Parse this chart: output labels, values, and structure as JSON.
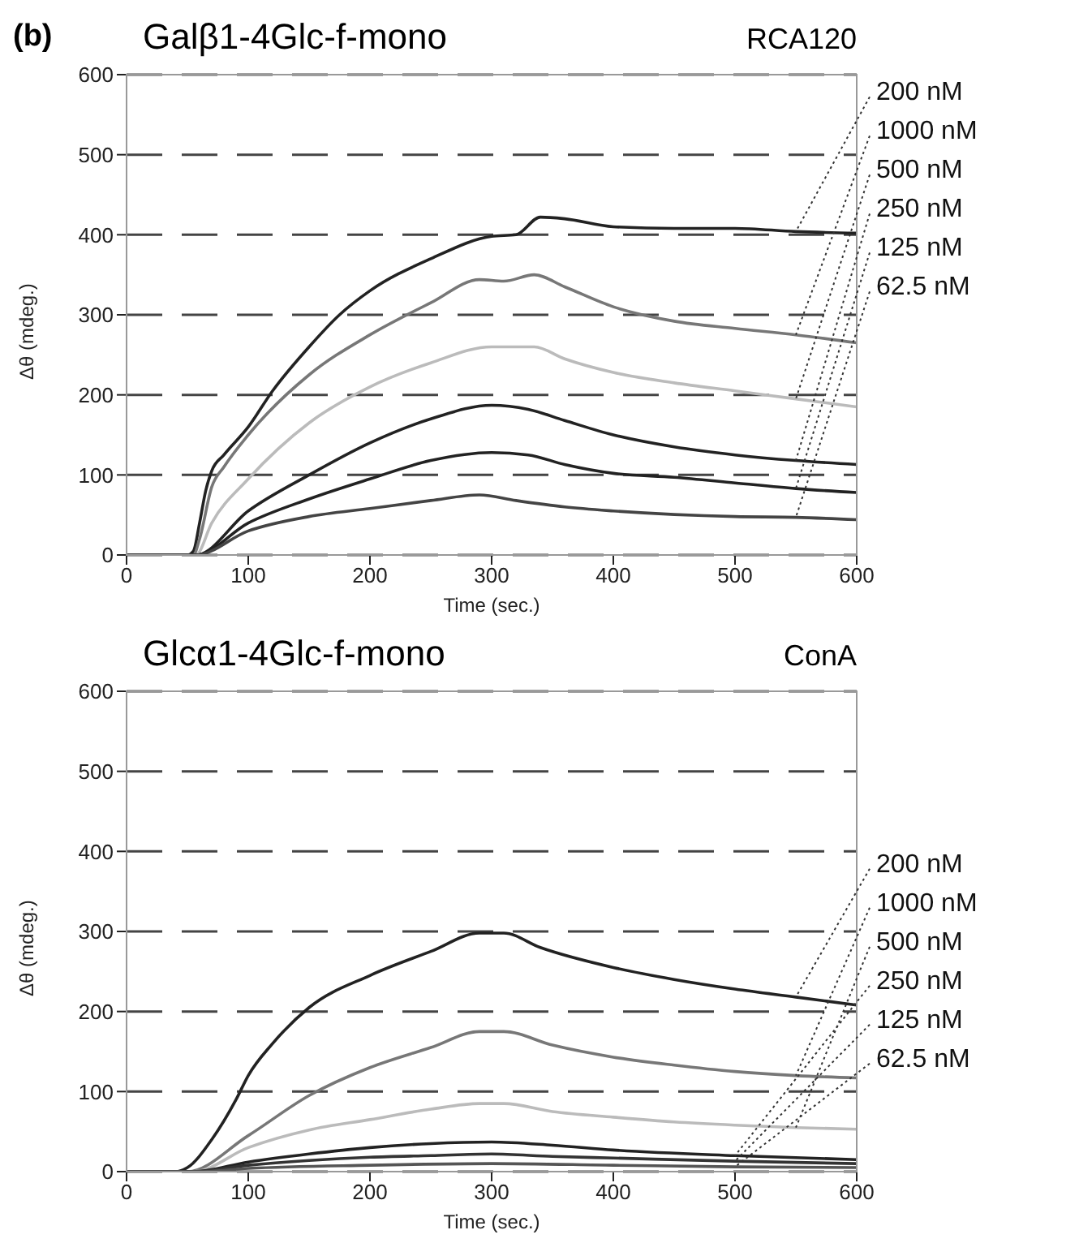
{
  "chart_data": [
    {
      "type": "line",
      "title": "Galβ1-4Glc-f-mono",
      "subtitle": "RCA120",
      "xlabel": "Time (sec.)",
      "ylabel": "Δθ (mdeg.)",
      "annotations": [
        "(b)"
      ],
      "xlim": [
        0,
        600
      ],
      "xticks": [
        0,
        100,
        200,
        300,
        400,
        500,
        600
      ],
      "ylim": [
        0,
        600
      ],
      "yticks": [
        0,
        100,
        200,
        300,
        400,
        500,
        600
      ],
      "grid": "y",
      "legend": false,
      "marker": "none",
      "line_style": "solid",
      "series": [
        {
          "name": "200 nM",
          "color": "#222222",
          "x": [
            0,
            50,
            55,
            60,
            65,
            70,
            80,
            100,
            120,
            150,
            175,
            200,
            250,
            300,
            320,
            340,
            360,
            400,
            450,
            500,
            550,
            600
          ],
          "values": [
            0,
            0,
            5,
            40,
            80,
            105,
            125,
            160,
            205,
            260,
            300,
            330,
            370,
            398,
            400,
            422,
            420,
            410,
            408,
            408,
            404,
            402
          ]
        },
        {
          "name": "1000 nM",
          "color": "#777777",
          "x": [
            0,
            55,
            60,
            70,
            80,
            100,
            150,
            200,
            250,
            290,
            310,
            335,
            360,
            400,
            450,
            500,
            550,
            600
          ],
          "values": [
            0,
            0,
            20,
            85,
            110,
            150,
            225,
            275,
            315,
            344,
            342,
            350,
            335,
            310,
            292,
            283,
            275,
            265
          ]
        },
        {
          "name": "500 nM",
          "color": "#bbbbbb",
          "x": [
            0,
            57,
            70,
            100,
            150,
            200,
            250,
            300,
            335,
            360,
            400,
            450,
            500,
            550,
            600
          ],
          "values": [
            0,
            0,
            40,
            95,
            165,
            210,
            240,
            260,
            260,
            245,
            228,
            215,
            205,
            195,
            185
          ]
        },
        {
          "name": "250 nM",
          "color": "#222222",
          "x": [
            0,
            57,
            100,
            150,
            200,
            250,
            300,
            330,
            360,
            400,
            450,
            500,
            550,
            600
          ],
          "values": [
            0,
            0,
            55,
            100,
            140,
            170,
            187,
            182,
            168,
            150,
            135,
            125,
            118,
            113
          ]
        },
        {
          "name": "125 nM",
          "color": "#222222",
          "x": [
            0,
            57,
            100,
            150,
            200,
            250,
            300,
            330,
            360,
            400,
            450,
            500,
            550,
            600
          ],
          "values": [
            0,
            0,
            40,
            70,
            95,
            118,
            128,
            125,
            113,
            102,
            97,
            90,
            83,
            78
          ]
        },
        {
          "name": "62.5 nM",
          "color": "#444444",
          "x": [
            0,
            57,
            100,
            150,
            200,
            250,
            290,
            320,
            360,
            400,
            500,
            550,
            600
          ],
          "values": [
            0,
            0,
            30,
            48,
            58,
            68,
            75,
            68,
            60,
            55,
            48,
            47,
            44
          ]
        }
      ]
    },
    {
      "type": "line",
      "title": "Glcα1-4Glc-f-mono",
      "subtitle": "ConA",
      "xlabel": "Time (sec.)",
      "ylabel": "Δθ (mdeg.)",
      "xlim": [
        0,
        600
      ],
      "xticks": [
        0,
        100,
        200,
        300,
        400,
        500,
        600
      ],
      "ylim": [
        0,
        600
      ],
      "yticks": [
        0,
        100,
        200,
        300,
        400,
        500,
        600
      ],
      "grid": "y",
      "legend": false,
      "marker": "none",
      "line_style": "solid",
      "series": [
        {
          "name": "200 nM",
          "color": "#222222",
          "x": [
            0,
            40,
            50,
            70,
            90,
            100,
            120,
            150,
            200,
            250,
            290,
            310,
            340,
            400,
            450,
            500,
            550,
            600
          ],
          "values": [
            0,
            0,
            5,
            40,
            90,
            120,
            160,
            205,
            245,
            275,
            298,
            298,
            280,
            255,
            240,
            228,
            218,
            208
          ]
        },
        {
          "name": "1000 nM",
          "color": "#777777",
          "x": [
            0,
            50,
            100,
            150,
            200,
            250,
            290,
            310,
            350,
            400,
            450,
            500,
            550,
            600
          ],
          "values": [
            0,
            0,
            45,
            95,
            130,
            155,
            175,
            175,
            158,
            143,
            133,
            125,
            120,
            117
          ]
        },
        {
          "name": "500 nM",
          "color": "#bbbbbb",
          "x": [
            0,
            55,
            100,
            150,
            200,
            250,
            290,
            310,
            350,
            400,
            450,
            500,
            550,
            600
          ],
          "values": [
            0,
            0,
            30,
            52,
            65,
            78,
            85,
            85,
            75,
            68,
            62,
            58,
            55,
            53
          ]
        },
        {
          "name": "250 nM",
          "color": "#222222",
          "x": [
            0,
            55,
            100,
            150,
            200,
            250,
            300,
            350,
            400,
            500,
            600
          ],
          "values": [
            0,
            0,
            12,
            22,
            30,
            35,
            37,
            33,
            27,
            20,
            15
          ]
        },
        {
          "name": "125 nM",
          "color": "#333333",
          "x": [
            0,
            55,
            100,
            150,
            200,
            250,
            300,
            350,
            400,
            500,
            600
          ],
          "values": [
            0,
            0,
            8,
            14,
            18,
            20,
            22,
            19,
            17,
            13,
            10
          ]
        },
        {
          "name": "62.5 nM",
          "color": "#555555",
          "x": [
            0,
            60,
            100,
            200,
            300,
            400,
            500,
            600
          ],
          "values": [
            0,
            0,
            4,
            8,
            10,
            8,
            6,
            5
          ]
        }
      ]
    }
  ]
}
